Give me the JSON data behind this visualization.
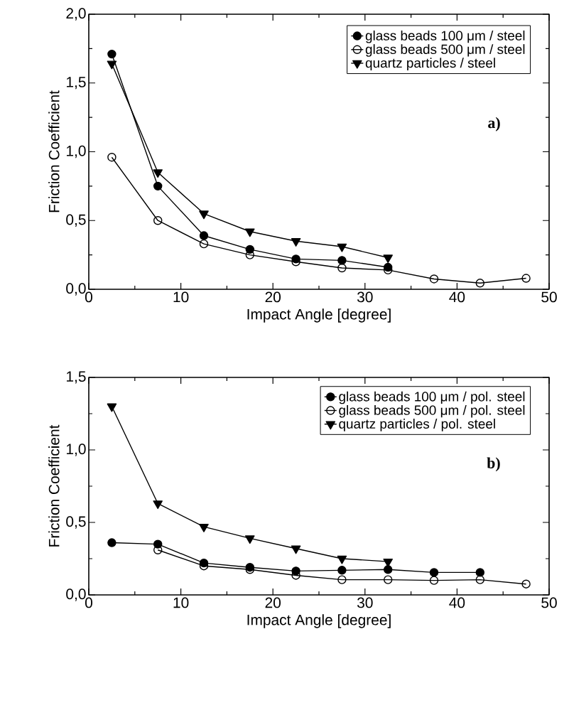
{
  "chart_data": [
    {
      "type": "line",
      "xlabel": "Impact Angle [degree]",
      "ylabel": "Friction Coefficient",
      "annotations": [
        "a)"
      ],
      "x": [
        2.5,
        7.5,
        12.5,
        17.5,
        22.5,
        27.5,
        32.5,
        37.5,
        42.5,
        47.5
      ],
      "series": [
        {
          "name": "glass beads 100 μm / steel",
          "color": "#000000",
          "marker": "circle",
          "values": [
            1.71,
            0.75,
            0.39,
            0.29,
            0.22,
            0.21,
            0.16,
            null,
            null,
            null
          ]
        },
        {
          "name": "glass beads 500 μm / steel",
          "color": "#000000",
          "marker": "circle_open",
          "values": [
            0.96,
            0.5,
            0.33,
            0.25,
            0.2,
            0.155,
            0.14,
            0.075,
            0.045,
            0.08
          ]
        },
        {
          "name": "quartz particles / steel",
          "color": "#000000",
          "marker": "triangle",
          "values": [
            1.64,
            0.85,
            0.55,
            0.42,
            0.35,
            0.31,
            0.23,
            null,
            null,
            null
          ]
        }
      ],
      "xlim": [
        0,
        50
      ],
      "xticks": [
        0,
        10,
        20,
        30,
        40,
        50
      ],
      "ylim": [
        0,
        2.0
      ],
      "yticks": [
        {
          "value": 0,
          "label": "0,0"
        },
        {
          "value": 0.5,
          "label": "0,5"
        },
        {
          "value": 1.0,
          "label": "1,0"
        },
        {
          "value": 1.5,
          "label": "1,5"
        },
        {
          "value": 2.0,
          "label": "2,0"
        }
      ],
      "legend": "top right",
      "grid": false
    },
    {
      "type": "line",
      "xlabel": "Impact Angle [degree]",
      "ylabel": "Friction Coefficient",
      "annotations": [
        "b)"
      ],
      "x": [
        2.5,
        7.5,
        12.5,
        17.5,
        22.5,
        27.5,
        32.5,
        37.5,
        42.5,
        47.5
      ],
      "series": [
        {
          "name": "glass beads 100 μm / pol. steel",
          "color": "#000000",
          "marker": "circle",
          "values": [
            0.36,
            0.35,
            0.22,
            0.19,
            0.165,
            0.17,
            0.175,
            0.155,
            0.155,
            null
          ]
        },
        {
          "name": "glass beads 500 μm / pol. steel",
          "color": "#000000",
          "marker": "circle_open",
          "values": [
            null,
            0.31,
            0.2,
            0.175,
            0.135,
            0.105,
            0.105,
            0.1,
            0.105,
            0.075
          ]
        },
        {
          "name": "quartz particles / pol. steel",
          "color": "#000000",
          "marker": "triangle",
          "values": [
            1.3,
            0.63,
            0.47,
            0.39,
            0.32,
            0.25,
            0.23,
            null,
            null,
            null
          ]
        }
      ],
      "xlim": [
        0,
        50
      ],
      "xticks": [
        0,
        10,
        20,
        30,
        40,
        50
      ],
      "ylim": [
        0,
        1.5
      ],
      "yticks": [
        {
          "value": 0,
          "label": "0,0"
        },
        {
          "value": 0.5,
          "label": "0,5"
        },
        {
          "value": 1.0,
          "label": "1,0"
        },
        {
          "value": 1.5,
          "label": "1,5"
        }
      ],
      "legend": "top right",
      "grid": false
    }
  ]
}
